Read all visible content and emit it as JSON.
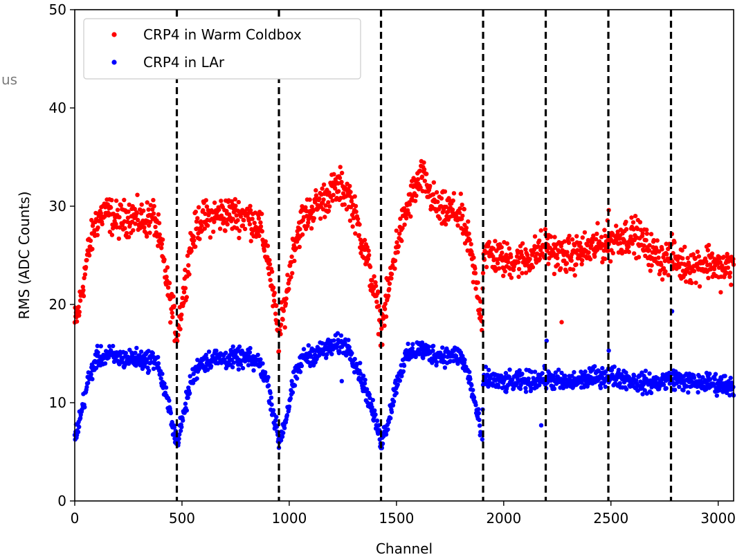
{
  "chart_data": {
    "type": "scatter",
    "title": "",
    "xlabel": "Channel",
    "ylabel": "RMS (ADC Counts)",
    "xlim": [
      0,
      3072
    ],
    "ylim": [
      0,
      50
    ],
    "xticks": [
      0,
      500,
      1000,
      1500,
      2000,
      2500,
      3000
    ],
    "yticks": [
      0,
      10,
      20,
      30,
      40,
      50
    ],
    "legend_position": "top-left",
    "grid": false,
    "partial_text_left": "us",
    "vertical_dashed_lines": [
      476,
      952,
      1428,
      1904,
      2196,
      2488,
      2780
    ],
    "series": [
      {
        "name": "CRP4 in Warm Coldbox",
        "color": "#ff0000",
        "profile": [
          [
            0,
            18.0
          ],
          [
            20,
            19.5
          ],
          [
            60,
            25.0
          ],
          [
            100,
            28.5
          ],
          [
            140,
            29.5
          ],
          [
            200,
            28.5
          ],
          [
            260,
            29.0
          ],
          [
            320,
            28.5
          ],
          [
            370,
            29.0
          ],
          [
            400,
            26.0
          ],
          [
            440,
            21.0
          ],
          [
            476,
            17.0
          ],
          [
            500,
            20.0
          ],
          [
            540,
            26.0
          ],
          [
            580,
            28.5
          ],
          [
            650,
            29.0
          ],
          [
            720,
            29.2
          ],
          [
            800,
            29.0
          ],
          [
            860,
            28.0
          ],
          [
            900,
            25.0
          ],
          [
            930,
            20.0
          ],
          [
            952,
            16.5
          ],
          [
            980,
            20.0
          ],
          [
            1020,
            26.0
          ],
          [
            1060,
            28.5
          ],
          [
            1100,
            29.5
          ],
          [
            1150,
            30.5
          ],
          [
            1200,
            31.5
          ],
          [
            1240,
            32.0
          ],
          [
            1280,
            31.0
          ],
          [
            1320,
            28.0
          ],
          [
            1370,
            24.0
          ],
          [
            1410,
            20.0
          ],
          [
            1428,
            17.5
          ],
          [
            1460,
            21.0
          ],
          [
            1500,
            26.0
          ],
          [
            1540,
            29.0
          ],
          [
            1580,
            31.5
          ],
          [
            1620,
            33.0
          ],
          [
            1660,
            31.0
          ],
          [
            1700,
            29.5
          ],
          [
            1760,
            29.5
          ],
          [
            1800,
            29.0
          ],
          [
            1840,
            26.0
          ],
          [
            1880,
            21.0
          ],
          [
            1900,
            18.5
          ],
          [
            1905,
            25.5
          ],
          [
            1950,
            25.0
          ],
          [
            2000,
            24.5
          ],
          [
            2080,
            24.5
          ],
          [
            2140,
            25.0
          ],
          [
            2196,
            26.0
          ],
          [
            2260,
            25.0
          ],
          [
            2320,
            25.0
          ],
          [
            2380,
            25.5
          ],
          [
            2440,
            26.0
          ],
          [
            2500,
            26.5
          ],
          [
            2560,
            27.0
          ],
          [
            2620,
            27.0
          ],
          [
            2680,
            25.5
          ],
          [
            2740,
            24.5
          ],
          [
            2780,
            25.0
          ],
          [
            2840,
            24.0
          ],
          [
            2900,
            24.0
          ],
          [
            2960,
            24.5
          ],
          [
            3010,
            23.5
          ],
          [
            3072,
            24.0
          ]
        ],
        "noise": 0.9,
        "outliers": [
          [
            2270,
            18.2
          ],
          [
            2490,
            29.6
          ]
        ]
      },
      {
        "name": "CRP4 in LAr",
        "color": "#0000ff",
        "profile": [
          [
            0,
            6.5
          ],
          [
            20,
            8.0
          ],
          [
            60,
            12.0
          ],
          [
            100,
            14.5
          ],
          [
            160,
            14.8
          ],
          [
            220,
            14.5
          ],
          [
            280,
            14.5
          ],
          [
            340,
            14.3
          ],
          [
            380,
            14.5
          ],
          [
            410,
            12.0
          ],
          [
            450,
            8.5
          ],
          [
            476,
            6.0
          ],
          [
            500,
            8.0
          ],
          [
            540,
            12.0
          ],
          [
            580,
            14.0
          ],
          [
            650,
            14.5
          ],
          [
            720,
            14.5
          ],
          [
            800,
            14.5
          ],
          [
            860,
            14.0
          ],
          [
            900,
            12.0
          ],
          [
            930,
            8.5
          ],
          [
            952,
            6.0
          ],
          [
            980,
            8.0
          ],
          [
            1020,
            12.0
          ],
          [
            1060,
            14.5
          ],
          [
            1120,
            15.0
          ],
          [
            1180,
            15.5
          ],
          [
            1240,
            16.0
          ],
          [
            1280,
            15.5
          ],
          [
            1320,
            13.5
          ],
          [
            1370,
            10.5
          ],
          [
            1410,
            7.5
          ],
          [
            1428,
            6.0
          ],
          [
            1460,
            8.0
          ],
          [
            1500,
            12.0
          ],
          [
            1540,
            14.5
          ],
          [
            1600,
            15.5
          ],
          [
            1660,
            15.0
          ],
          [
            1720,
            14.8
          ],
          [
            1800,
            14.8
          ],
          [
            1840,
            12.5
          ],
          [
            1880,
            8.5
          ],
          [
            1900,
            6.0
          ],
          [
            1905,
            12.5
          ],
          [
            2000,
            12.0
          ],
          [
            2100,
            12.2
          ],
          [
            2196,
            12.5
          ],
          [
            2300,
            12.0
          ],
          [
            2400,
            12.5
          ],
          [
            2480,
            12.8
          ],
          [
            2560,
            12.5
          ],
          [
            2640,
            12.0
          ],
          [
            2720,
            12.0
          ],
          [
            2780,
            12.5
          ],
          [
            2880,
            12.0
          ],
          [
            2960,
            12.0
          ],
          [
            3072,
            11.8
          ]
        ],
        "noise": 0.5,
        "outliers": [
          [
            1245,
            12.2
          ],
          [
            2175,
            7.7
          ],
          [
            2200,
            16.3
          ],
          [
            2490,
            15.3
          ],
          [
            2785,
            19.3
          ]
        ]
      }
    ]
  }
}
